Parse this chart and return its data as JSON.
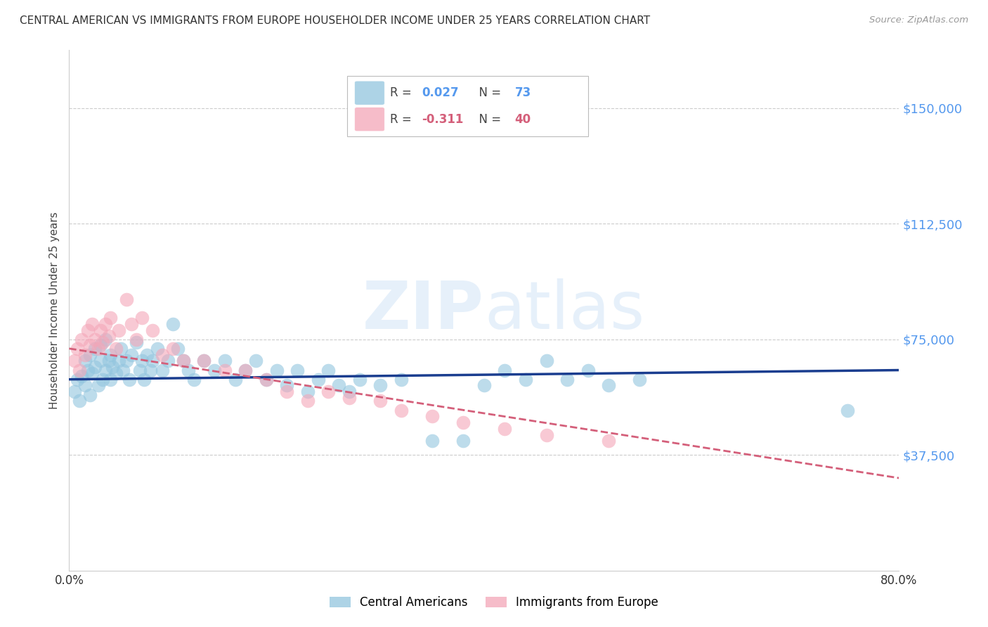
{
  "title": "CENTRAL AMERICAN VS IMMIGRANTS FROM EUROPE HOUSEHOLDER INCOME UNDER 25 YEARS CORRELATION CHART",
  "source": "Source: ZipAtlas.com",
  "ylabel": "Householder Income Under 25 years",
  "xlim": [
    0.0,
    0.8
  ],
  "ylim": [
    0,
    168750
  ],
  "yticks": [
    0,
    37500,
    75000,
    112500,
    150000
  ],
  "ytick_labels": [
    "",
    "$37,500",
    "$75,000",
    "$112,500",
    "$150,000"
  ],
  "xticks": [
    0.0,
    0.1,
    0.2,
    0.3,
    0.4,
    0.5,
    0.6,
    0.7,
    0.8
  ],
  "blue_color": "#92c5de",
  "pink_color": "#f4a6b8",
  "blue_line_color": "#1a3d8f",
  "pink_line_color": "#d45f7a",
  "blue_R": 0.027,
  "blue_N": 73,
  "pink_R": -0.311,
  "pink_N": 40,
  "watermark": "ZIPatlas",
  "legend_label_blue": "Central Americans",
  "legend_label_pink": "Immigrants from Europe",
  "blue_x": [
    0.005,
    0.008,
    0.01,
    0.012,
    0.015,
    0.015,
    0.018,
    0.02,
    0.02,
    0.022,
    0.025,
    0.025,
    0.028,
    0.03,
    0.03,
    0.032,
    0.035,
    0.035,
    0.038,
    0.04,
    0.04,
    0.042,
    0.045,
    0.048,
    0.05,
    0.052,
    0.055,
    0.058,
    0.06,
    0.065,
    0.068,
    0.07,
    0.072,
    0.075,
    0.078,
    0.08,
    0.085,
    0.09,
    0.095,
    0.1,
    0.105,
    0.11,
    0.115,
    0.12,
    0.13,
    0.14,
    0.15,
    0.16,
    0.17,
    0.18,
    0.19,
    0.2,
    0.21,
    0.22,
    0.23,
    0.24,
    0.25,
    0.26,
    0.27,
    0.28,
    0.3,
    0.32,
    0.35,
    0.38,
    0.4,
    0.42,
    0.44,
    0.46,
    0.48,
    0.5,
    0.52,
    0.55,
    0.75
  ],
  "blue_y": [
    58000,
    62000,
    55000,
    63000,
    60000,
    68000,
    65000,
    57000,
    70000,
    64000,
    72000,
    66000,
    60000,
    68000,
    73000,
    62000,
    75000,
    65000,
    68000,
    62000,
    70000,
    66000,
    64000,
    68000,
    72000,
    65000,
    68000,
    62000,
    70000,
    74000,
    65000,
    68000,
    62000,
    70000,
    65000,
    68000,
    72000,
    65000,
    68000,
    80000,
    72000,
    68000,
    65000,
    62000,
    68000,
    65000,
    68000,
    62000,
    65000,
    68000,
    62000,
    65000,
    60000,
    65000,
    58000,
    62000,
    65000,
    60000,
    58000,
    62000,
    60000,
    62000,
    42000,
    42000,
    60000,
    65000,
    62000,
    68000,
    62000,
    65000,
    60000,
    62000,
    52000
  ],
  "pink_x": [
    0.005,
    0.008,
    0.01,
    0.012,
    0.015,
    0.018,
    0.02,
    0.022,
    0.025,
    0.028,
    0.03,
    0.032,
    0.035,
    0.038,
    0.04,
    0.045,
    0.048,
    0.055,
    0.06,
    0.065,
    0.07,
    0.08,
    0.09,
    0.1,
    0.11,
    0.13,
    0.15,
    0.17,
    0.19,
    0.21,
    0.23,
    0.25,
    0.27,
    0.3,
    0.32,
    0.35,
    0.38,
    0.42,
    0.46,
    0.52
  ],
  "pink_y": [
    68000,
    72000,
    65000,
    75000,
    70000,
    78000,
    73000,
    80000,
    75000,
    72000,
    78000,
    74000,
    80000,
    76000,
    82000,
    72000,
    78000,
    88000,
    80000,
    75000,
    82000,
    78000,
    70000,
    72000,
    68000,
    68000,
    65000,
    65000,
    62000,
    58000,
    55000,
    58000,
    56000,
    55000,
    52000,
    50000,
    48000,
    46000,
    44000,
    42000
  ],
  "bg_color": "#ffffff",
  "grid_color": "#cccccc",
  "spine_color": "#cccccc",
  "title_color": "#333333",
  "source_color": "#999999",
  "ylabel_color": "#444444",
  "ytick_right_color": "#5599ee",
  "xtick_color": "#333333"
}
